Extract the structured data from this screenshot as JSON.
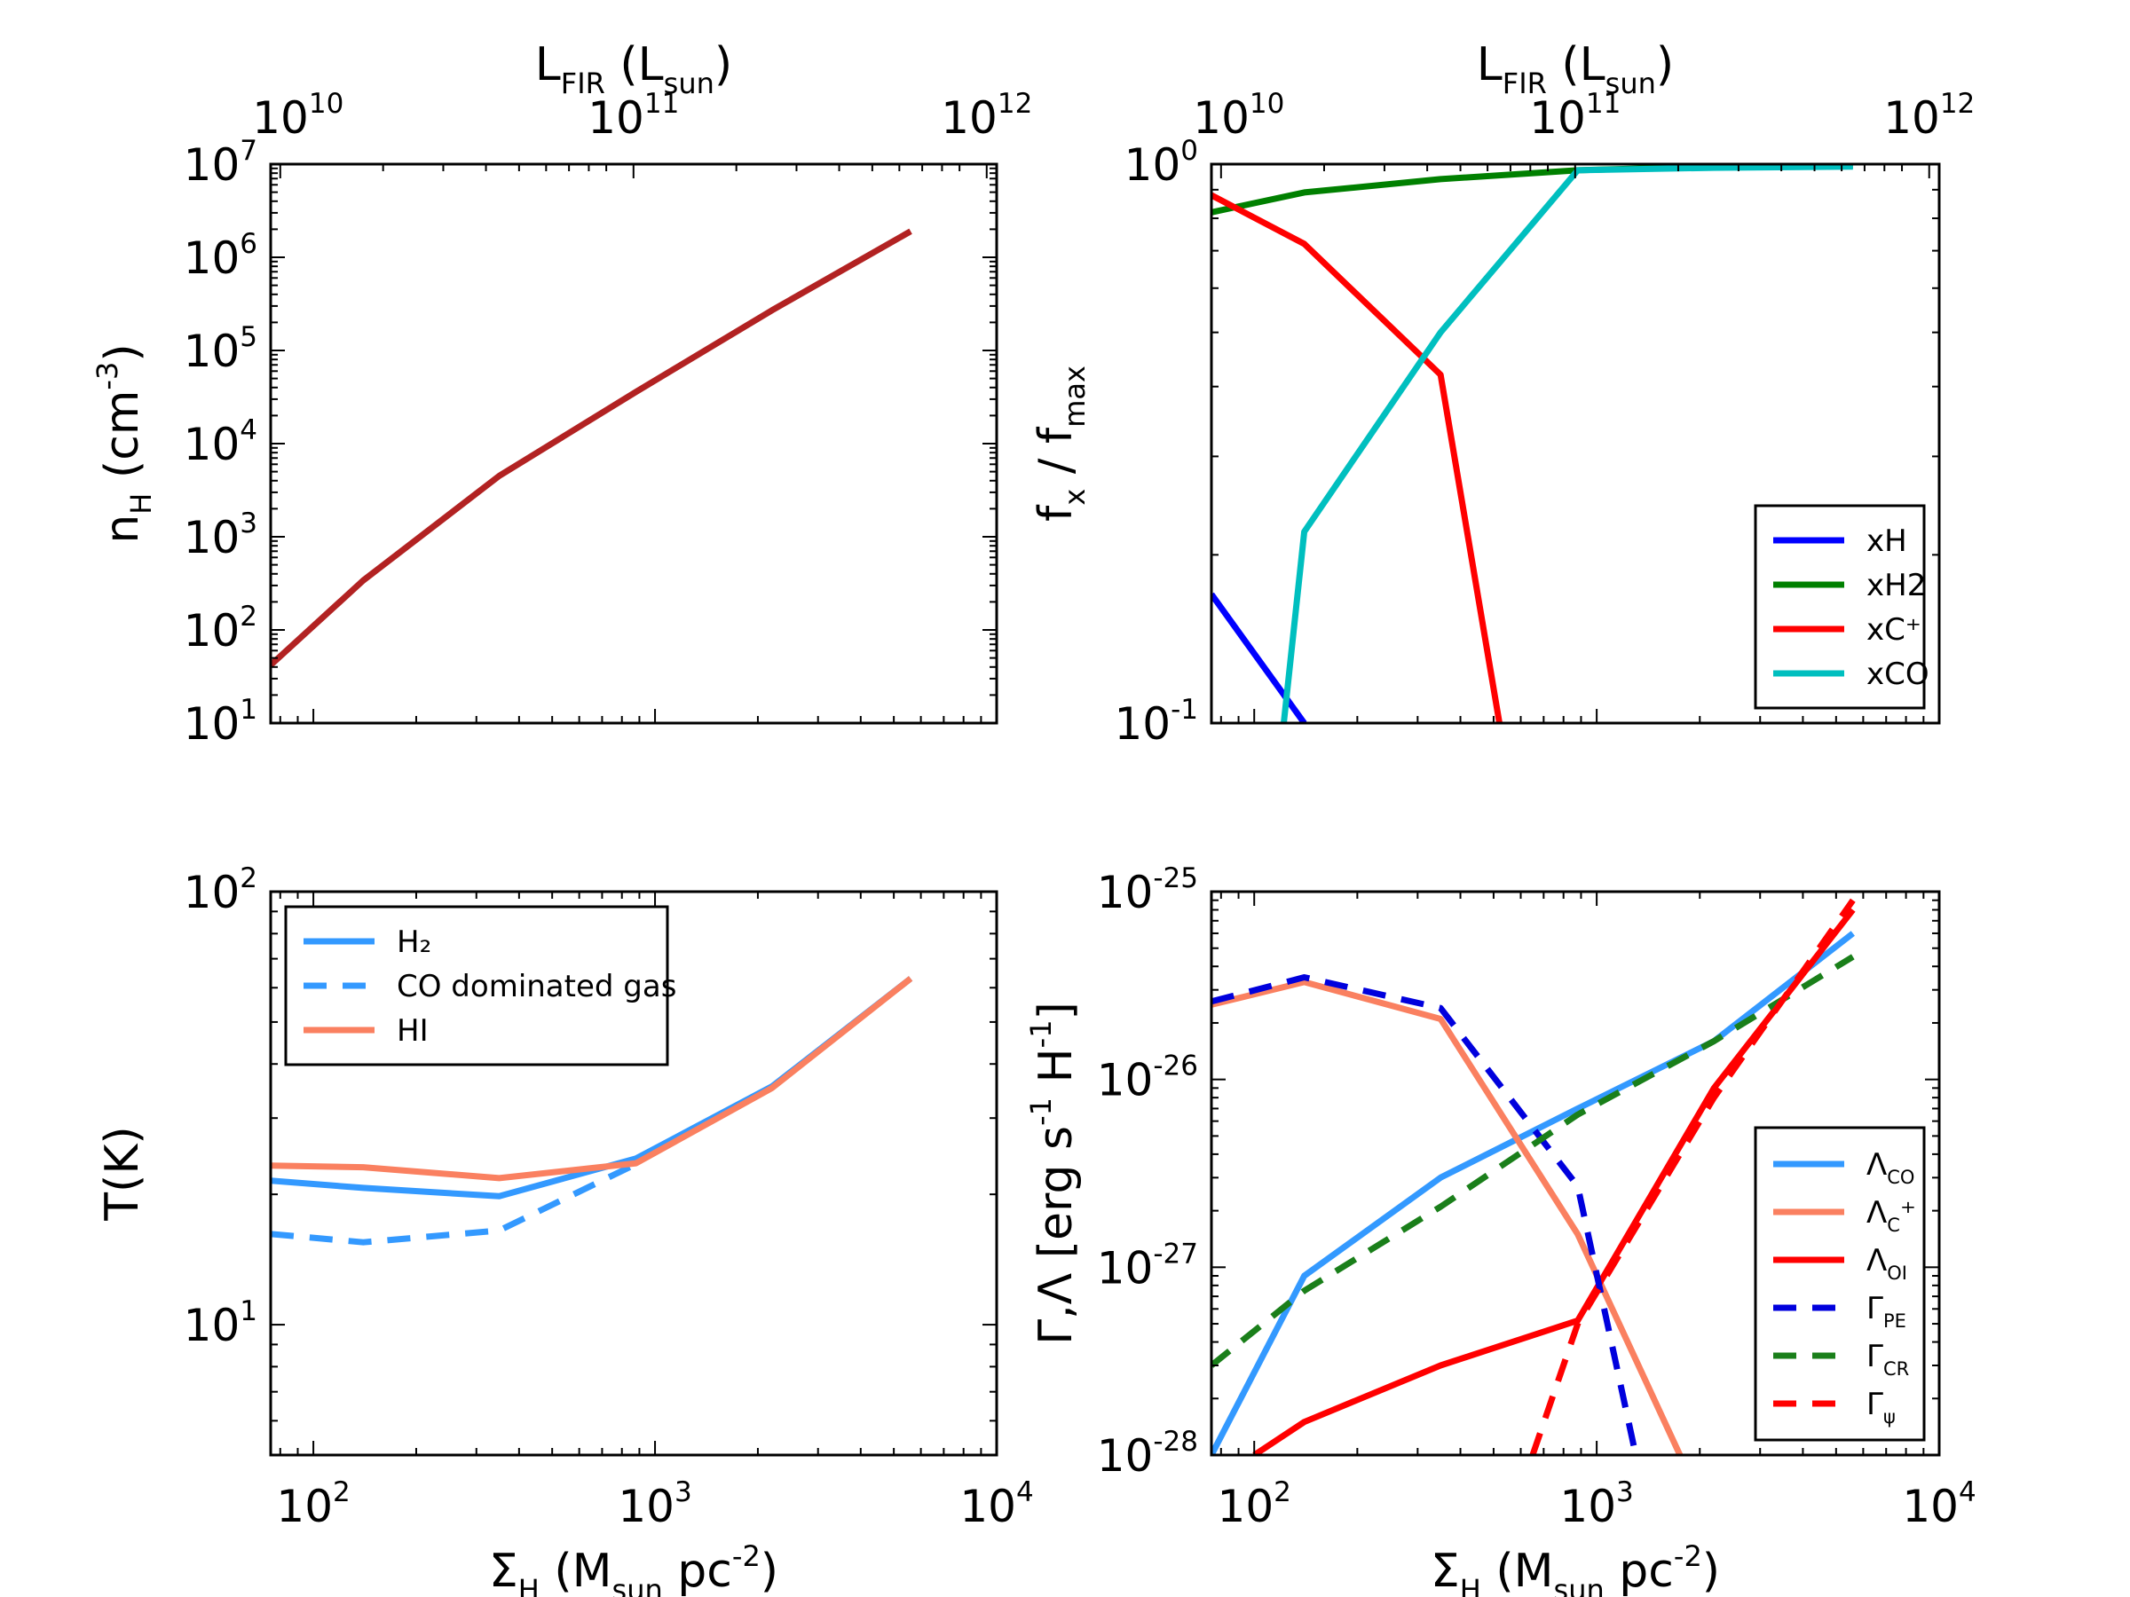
{
  "chart_data": [
    {
      "id": "density",
      "type": "line",
      "xscale": "log",
      "yscale": "log",
      "xlim": [
        75,
        10000
      ],
      "ylim": [
        10,
        10000000
      ],
      "xlabel": "",
      "ylabel": "n_H (cm^-3)",
      "top_axis": {
        "label": "L_FIR (L_sun)",
        "ticks": [
          "10^10",
          "10^11",
          "10^12"
        ],
        "sigma_at_ticks": [
          80,
          865,
          9350
        ]
      },
      "x_ticks": [
        "10^2",
        "10^3",
        "10^4"
      ],
      "y_ticks": [
        "10^1",
        "10^2",
        "10^3",
        "10^4",
        "10^5",
        "10^6",
        "10^7"
      ],
      "series": [
        {
          "name": "n_H",
          "color": "#b22222",
          "dash": "solid",
          "x": [
            75,
            140,
            350,
            880,
            2200,
            5600
          ],
          "y": [
            42,
            340,
            4500,
            36000,
            270000,
            1900000
          ]
        }
      ]
    },
    {
      "id": "abundances",
      "type": "line",
      "xscale": "log",
      "yscale": "log",
      "xlim": [
        75,
        10000
      ],
      "ylim": [
        0.1,
        1
      ],
      "xlabel": "",
      "ylabel": "f_x / f_max",
      "top_axis": {
        "label": "L_FIR (L_sun)",
        "ticks": [
          "10^10",
          "10^11",
          "10^12"
        ],
        "sigma_at_ticks": [
          80,
          865,
          9350
        ]
      },
      "y_ticks": [
        "10^-1",
        "10^0"
      ],
      "legend": {
        "position": "lower-right",
        "entries": [
          "xH",
          "xH2",
          "xC⁺",
          "xCO"
        ]
      },
      "series": [
        {
          "name": "xH",
          "color": "#0000ff",
          "dash": "solid",
          "x": [
            75,
            140
          ],
          "y": [
            0.17,
            0.1
          ]
        },
        {
          "name": "xH2",
          "color": "#008000",
          "dash": "solid",
          "x": [
            75,
            140,
            350,
            880,
            2200,
            5600
          ],
          "y": [
            0.82,
            0.89,
            0.94,
            0.975,
            0.99,
            0.995
          ]
        },
        {
          "name": "xC⁺",
          "color": "#ff0000",
          "dash": "solid",
          "x": [
            75,
            140,
            350,
            520
          ],
          "y": [
            0.88,
            0.72,
            0.42,
            0.1
          ]
        },
        {
          "name": "xCO",
          "color": "#00bfbf",
          "dash": "solid",
          "x": [
            122,
            140,
            350,
            880,
            2200,
            5600
          ],
          "y": [
            0.1,
            0.22,
            0.5,
            0.975,
            0.985,
            0.99
          ]
        }
      ]
    },
    {
      "id": "temperature",
      "type": "line",
      "xscale": "log",
      "yscale": "log",
      "xlim": [
        75,
        10000
      ],
      "ylim": [
        5,
        100
      ],
      "xlabel": "Σ_H (M_sun pc^-2)",
      "ylabel": "T(K)",
      "x_ticks": [
        "10^2",
        "10^3",
        "10^4"
      ],
      "y_ticks": [
        "10^1",
        "10^2"
      ],
      "legend": {
        "position": "upper-left",
        "entries": [
          "H₂",
          "CO dominated gas",
          "HI"
        ]
      },
      "series": [
        {
          "name": "H₂",
          "color": "#3399ff",
          "dash": "solid",
          "x": [
            75,
            140,
            350,
            880,
            2200,
            5600
          ],
          "y": [
            21.5,
            20.7,
            19.8,
            24.2,
            35.5,
            63
          ]
        },
        {
          "name": "CO dominated gas",
          "color": "#3399ff",
          "dash": "dashed",
          "x": [
            75,
            140,
            350,
            880
          ],
          "y": [
            16.2,
            15.5,
            16.5,
            23.5
          ]
        },
        {
          "name": "HI",
          "color": "#fa8060",
          "dash": "solid",
          "x": [
            75,
            140,
            350,
            880,
            2200,
            5600
          ],
          "y": [
            23.3,
            23.1,
            21.8,
            23.6,
            35.2,
            63
          ]
        }
      ]
    },
    {
      "id": "heating-cooling",
      "type": "line",
      "xscale": "log",
      "yscale": "log",
      "xlim": [
        75,
        10000
      ],
      "ylim": [
        1e-28,
        1e-25
      ],
      "xlabel": "Σ_H (M_sun pc^-2)",
      "ylabel": "Γ,Λ [erg s^-1 H^-1]",
      "x_ticks": [
        "10^2",
        "10^3",
        "10^4"
      ],
      "y_ticks": [
        "10^-28",
        "10^-27",
        "10^-26",
        "10^-25"
      ],
      "legend": {
        "position": "lower-right",
        "entries": [
          "Λ_CO",
          "Λ_C⁺",
          "Λ_OI",
          "Γ_PE",
          "Γ_CR",
          "Γ_ψ"
        ]
      },
      "series": [
        {
          "name": "Λ_CO",
          "color": "#3399ff",
          "dash": "solid",
          "x": [
            75,
            140,
            350,
            880,
            2200,
            5600
          ],
          "y": [
            1e-28,
            9e-28,
            3e-27,
            7e-27,
            1.6e-26,
            6e-26
          ]
        },
        {
          "name": "Λ_C⁺",
          "color": "#fa8060",
          "dash": "solid",
          "x": [
            75,
            140,
            350,
            880,
            1750
          ],
          "y": [
            2.5e-26,
            3.3e-26,
            2.1e-26,
            1.5e-27,
            1e-28
          ]
        },
        {
          "name": "Λ_OI",
          "color": "#ff0000",
          "dash": "solid",
          "x": [
            100,
            140,
            350,
            880,
            2200,
            5600
          ],
          "y": [
            1e-28,
            1.5e-28,
            3e-28,
            5.2e-28,
            9e-27,
            8e-26
          ]
        },
        {
          "name": "Γ_PE",
          "color": "#0000dd",
          "dash": "dashed",
          "x": [
            75,
            140,
            350,
            880,
            1300
          ],
          "y": [
            2.6e-26,
            3.5e-26,
            2.4e-26,
            2.7e-27,
            1e-28
          ]
        },
        {
          "name": "Γ_CR",
          "color": "#1a7f1a",
          "dash": "dashed",
          "x": [
            75,
            140,
            350,
            880,
            2200,
            5600
          ],
          "y": [
            3e-28,
            7.5e-28,
            2.1e-27,
            6.5e-27,
            1.6e-26,
            4.5e-26
          ]
        },
        {
          "name": "Γ_ψ",
          "color": "#ff0000",
          "dash": "dashed",
          "x": [
            650,
            880,
            2200,
            5600
          ],
          "y": [
            1e-28,
            5e-28,
            8e-27,
            9e-26
          ]
        }
      ]
    }
  ]
}
